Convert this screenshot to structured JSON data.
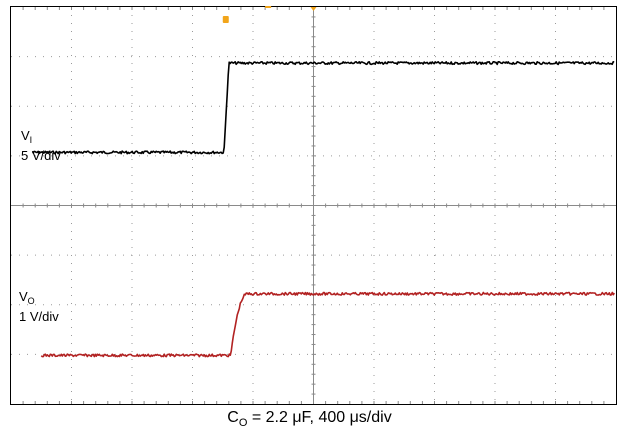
{
  "chart_data": {
    "type": "line",
    "title": "",
    "grid": true,
    "divisions": {
      "x": 10,
      "y": 8
    },
    "x_range_div": [
      0,
      10
    ],
    "series": [
      {
        "name_main": "V",
        "name_sub": "I",
        "scale": "5 V/div",
        "color": "#000000",
        "step_start_div": 3.52,
        "step_end_div": 3.6,
        "low_level_div": 5.07,
        "high_level_div": 6.87,
        "start_div": 0.35
      },
      {
        "name_main": "V",
        "name_sub": "O",
        "scale": "1 V/div",
        "color": "#b22222",
        "step_start_div": 3.63,
        "step_end_div": 3.9,
        "low_level_div": 0.98,
        "high_level_div": 2.22,
        "start_div": 0.5
      }
    ],
    "caption_main": "C",
    "caption_sub": "O",
    "caption_rest": " = 2.2 μF, 400 μs/div"
  }
}
